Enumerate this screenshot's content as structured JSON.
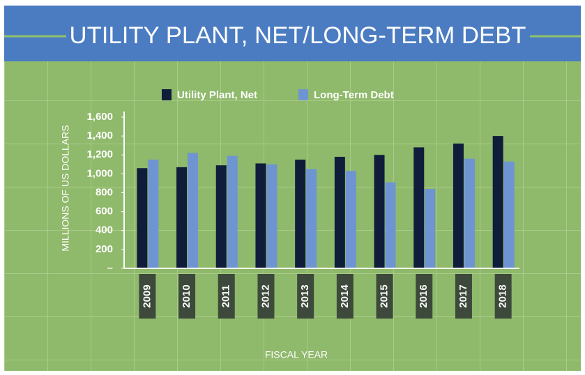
{
  "chart_data": {
    "type": "bar",
    "title": "UTILITY PLANT, NET/LONG-TERM DEBT",
    "y_label": "MILLIONS OF US DOLLARS",
    "x_label": "FISCAL YEAR",
    "categories": [
      "2009",
      "2010",
      "2011",
      "2012",
      "2013",
      "2014",
      "2015",
      "2016",
      "2017",
      "2018"
    ],
    "series": [
      {
        "name": "Utility Plant, Net",
        "color": "#0f1d3a",
        "values": [
          1060,
          1070,
          1090,
          1110,
          1150,
          1180,
          1200,
          1280,
          1320,
          1400
        ]
      },
      {
        "name": "Long-Term Debt",
        "color": "#6e95d2",
        "values": [
          1150,
          1220,
          1190,
          1100,
          1050,
          1030,
          910,
          840,
          1160,
          1130
        ]
      }
    ],
    "ylim": [
      0,
      1600
    ],
    "yticks": [
      {
        "value": 0,
        "label": "–"
      },
      200,
      400,
      600,
      800,
      {
        "value": 1000,
        "label": "1,000"
      },
      {
        "value": 1200,
        "label": "1,200"
      },
      {
        "value": 1400,
        "label": "1,400"
      },
      {
        "value": 1600,
        "label": "1,600"
      }
    ]
  }
}
